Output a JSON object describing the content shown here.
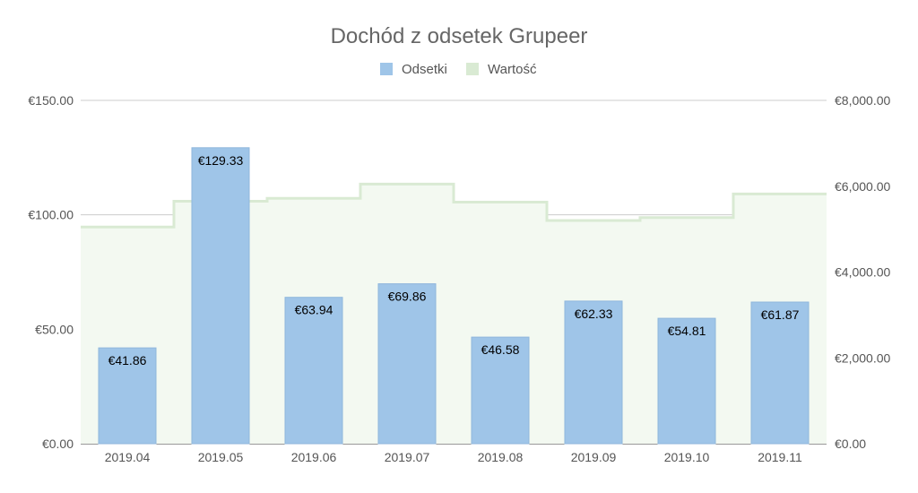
{
  "chart_data": {
    "type": "bar",
    "title": "Dochód z odsetek  Grupeer",
    "categories": [
      "2019.04",
      "2019.05",
      "2019.06",
      "2019.07",
      "2019.08",
      "2019.09",
      "2019.10",
      "2019.11"
    ],
    "series": [
      {
        "name": "Odsetki",
        "type": "bar",
        "axis": "left",
        "color": "#9fc5e8",
        "values": [
          41.86,
          129.33,
          63.94,
          69.86,
          46.58,
          62.33,
          54.81,
          61.87
        ],
        "labels": [
          "€41.86",
          "€129.33",
          "€63.94",
          "€69.86",
          "€46.58",
          "€62.33",
          "€54.81",
          "€61.87"
        ]
      },
      {
        "name": "Wartość",
        "type": "stepped-area",
        "axis": "right",
        "color": "#d9ead3",
        "values": [
          5050,
          5650,
          5720,
          6050,
          5630,
          5200,
          5270,
          5820
        ]
      }
    ],
    "y_left": {
      "min": 0,
      "max": 150,
      "ticks": [
        0,
        50,
        100,
        150
      ],
      "tick_labels": [
        "€0.00",
        "€50.00",
        "€100.00",
        "€150.00"
      ]
    },
    "y_right": {
      "min": 0,
      "max": 8000,
      "ticks": [
        0,
        2000,
        4000,
        6000,
        8000
      ],
      "tick_labels": [
        "€0.00",
        "€2,000.00",
        "€4,000.00",
        "€6,000.00",
        "€8,000.00"
      ]
    },
    "legend_position": "top",
    "grid": true
  }
}
